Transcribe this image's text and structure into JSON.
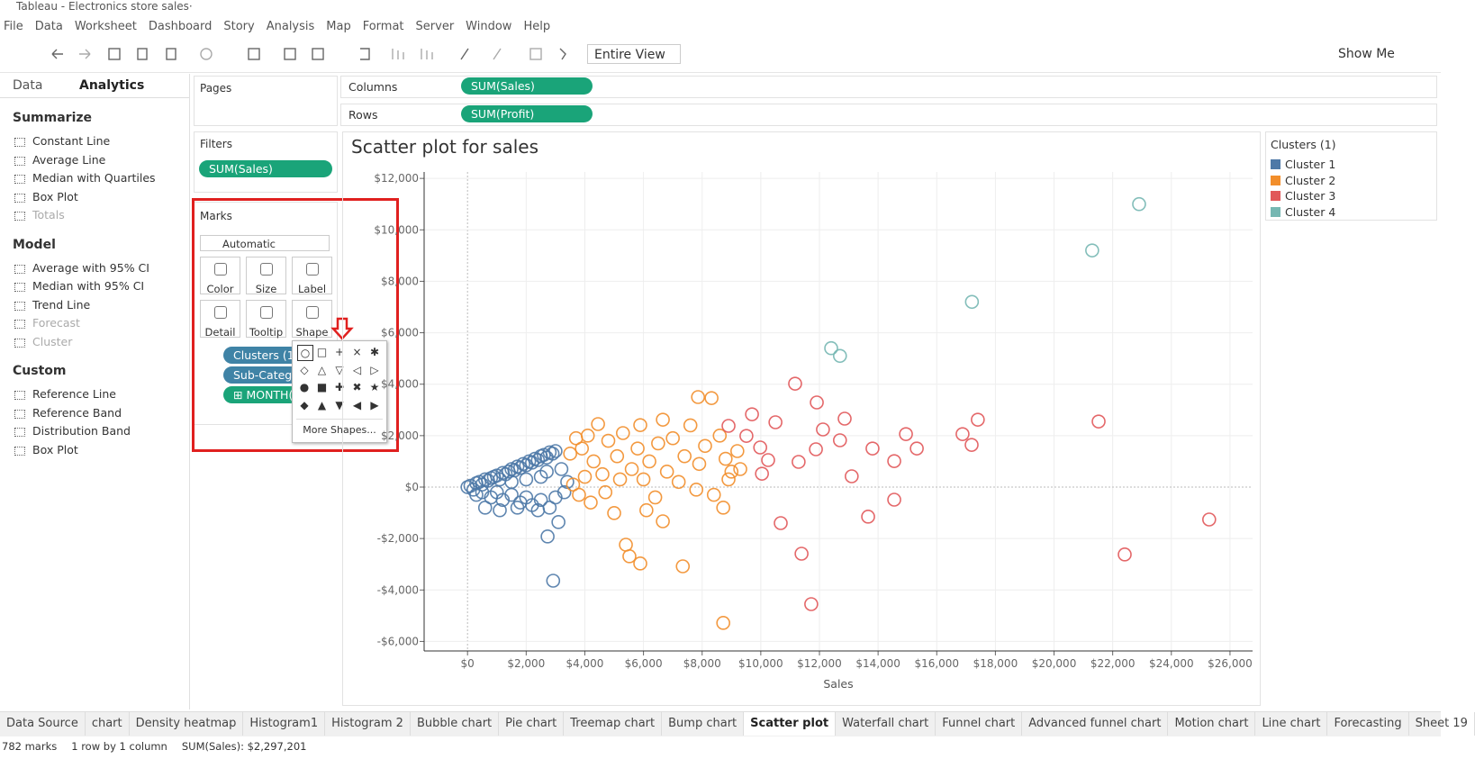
{
  "window": {
    "title": "Tableau - Electronics store sales·"
  },
  "menu": [
    "File",
    "Data",
    "Worksheet",
    "Dashboard",
    "Story",
    "Analysis",
    "Map",
    "Format",
    "Server",
    "Window",
    "Help"
  ],
  "toolbar": {
    "view": "Entire View",
    "show_me": "Show Me"
  },
  "side_panel": {
    "tabs": [
      "Data",
      "Analytics"
    ],
    "sections": [
      {
        "title": "Summarize",
        "items": [
          "Constant Line",
          "Average Line",
          "Median with Quartiles",
          "Box Plot",
          "Totals"
        ]
      },
      {
        "title": "Model",
        "items": [
          "Average with 95% CI",
          "Median with 95% CI",
          "Trend Line",
          "Forecast",
          "Cluster"
        ]
      },
      {
        "title": "Custom",
        "items": [
          "Reference Line",
          "Reference Band",
          "Distribution Band",
          "Box Plot"
        ]
      }
    ]
  },
  "pages": {
    "title": "Pages"
  },
  "filters": {
    "title": "Filters",
    "pills": [
      "SUM(Sales)"
    ]
  },
  "marks": {
    "title": "Marks",
    "type": "Automatic",
    "buttons": [
      "Color",
      "Size",
      "Label",
      "Detail",
      "Tooltip",
      "Shape"
    ],
    "pills": [
      "Clusters (1)",
      "Sub-Catego",
      "⊞ MONTH("
    ]
  },
  "shape_popup": {
    "shapes": [
      "○",
      "□",
      "+",
      "×",
      "✱",
      "◇",
      "△",
      "▽",
      "◁",
      "▷",
      "●",
      "■",
      "✚",
      "✖",
      "★",
      "◆",
      "▲",
      "▼",
      "◀",
      "▶"
    ],
    "more": "More Shapes..."
  },
  "shelves": {
    "columns": {
      "label": "Columns",
      "pill": "SUM(Sales)"
    },
    "rows": {
      "label": "Rows",
      "pill": "SUM(Profit)"
    }
  },
  "chart_data": {
    "type": "scatter",
    "title": "Scatter plot for sales",
    "x_label": "Sales",
    "legend_title": "Clusters (1)",
    "grid": true,
    "xlim": [
      -1480,
      26770
    ],
    "ylim": [
      -6370,
      12250
    ],
    "xticks": [
      {
        "value": 0,
        "label": "$0"
      },
      {
        "value": 2000,
        "label": "$2,000"
      },
      {
        "value": 4000,
        "label": "$4,000"
      },
      {
        "value": 6000,
        "label": "$6,000"
      },
      {
        "value": 8000,
        "label": "$8,000"
      },
      {
        "value": 10000,
        "label": "$10,000"
      },
      {
        "value": 12000,
        "label": "$12,000"
      },
      {
        "value": 14000,
        "label": "$14,000"
      },
      {
        "value": 16000,
        "label": "$16,000"
      },
      {
        "value": 18000,
        "label": "$18,000"
      },
      {
        "value": 20000,
        "label": "$20,000"
      },
      {
        "value": 22000,
        "label": "$22,000"
      },
      {
        "value": 24000,
        "label": "$24,000"
      },
      {
        "value": 26000,
        "label": "$26,000"
      }
    ],
    "yticks": [
      {
        "value": -6000,
        "label": "-$6,000"
      },
      {
        "value": -4000,
        "label": "-$4,000"
      },
      {
        "value": -2000,
        "label": "-$2,000"
      },
      {
        "value": 0,
        "label": "$0"
      },
      {
        "value": 2000,
        "label": "$2,000"
      },
      {
        "value": 4000,
        "label": "$4,000"
      },
      {
        "value": 6000,
        "label": "$6,000"
      },
      {
        "value": 8000,
        "label": "$8,000"
      },
      {
        "value": 10000,
        "label": "$10,000"
      },
      {
        "value": 12000,
        "label": "$12,000"
      }
    ],
    "series": [
      {
        "name": "Cluster 1",
        "color": "#4e79a7",
        "x": [
          0,
          100,
          200,
          300,
          400,
          500,
          600,
          700,
          800,
          900,
          1000,
          1100,
          1200,
          1300,
          1400,
          1500,
          1600,
          1700,
          1800,
          1900,
          2000,
          2100,
          2200,
          2300,
          2400,
          2500,
          2600,
          2700,
          2800,
          2900,
          3000,
          300,
          500,
          800,
          1000,
          1200,
          1500,
          1800,
          2000,
          2200,
          2500,
          2800,
          3000,
          600,
          1100,
          1700,
          2400,
          2730,
          2920,
          3100,
          1500,
          2000,
          2500,
          3200,
          3400,
          3300,
          2700
        ],
        "values": [
          0,
          50,
          -100,
          150,
          200,
          100,
          300,
          250,
          350,
          400,
          450,
          300,
          550,
          500,
          600,
          700,
          650,
          800,
          750,
          900,
          850,
          1000,
          950,
          1100,
          1050,
          1200,
          1250,
          1150,
          1350,
          1300,
          1400,
          -300,
          -200,
          -400,
          -200,
          -500,
          -300,
          -600,
          -400,
          -700,
          -500,
          -800,
          -400,
          -800,
          -900,
          -800,
          -900,
          -1920,
          -3640,
          -1360,
          200,
          300,
          400,
          700,
          200,
          -200,
          600
        ]
      },
      {
        "name": "Cluster 2",
        "color": "#f28e2b",
        "x": [
          3500,
          3700,
          3900,
          4100,
          4300,
          4450,
          4600,
          4800,
          5000,
          5100,
          5300,
          5400,
          5520,
          5600,
          5800,
          5890,
          5890,
          6000,
          6200,
          6400,
          6500,
          6660,
          6660,
          6800,
          7000,
          7200,
          7340,
          7400,
          7600,
          7860,
          7900,
          8100,
          8320,
          8400,
          8600,
          8720,
          8720,
          8800,
          9000,
          9200,
          3800,
          4200,
          4000,
          4700,
          5200,
          6100,
          7800,
          8900,
          9300,
          3600
        ],
        "values": [
          1300,
          1900,
          1500,
          2000,
          1000,
          2450,
          500,
          1800,
          -1010,
          1200,
          2100,
          -2240,
          -2690,
          700,
          1500,
          2410,
          -2970,
          300,
          1000,
          -400,
          1700,
          2620,
          -1330,
          600,
          1900,
          200,
          -3080,
          1200,
          2400,
          3500,
          900,
          1600,
          3460,
          -300,
          2000,
          -800,
          -5280,
          1100,
          600,
          1400,
          -300,
          -600,
          400,
          -200,
          300,
          -900,
          -100,
          300,
          700,
          100
        ]
      },
      {
        "name": "Cluster 3",
        "color": "#e15759",
        "x": [
          11170,
          11910,
          12860,
          12120,
          10500,
          9700,
          8900,
          11880,
          12700,
          13810,
          14950,
          15320,
          14550,
          17400,
          16880,
          17190,
          21520,
          13100,
          11290,
          10040,
          13660,
          10680,
          11390,
          14550,
          11720,
          22410,
          25290,
          9980,
          10250,
          9510
        ],
        "values": [
          4020,
          3290,
          2660,
          2240,
          2520,
          2830,
          2380,
          1470,
          1820,
          1500,
          2060,
          1500,
          1010,
          2620,
          2060,
          1640,
          2550,
          420,
          980,
          520,
          -1150,
          -1400,
          -2590,
          -490,
          -4550,
          -2620,
          -1260,
          1540,
          1050,
          1990
        ]
      },
      {
        "name": "Cluster 4",
        "color": "#76b7b2",
        "x": [
          17200,
          21300,
          22900,
          12400,
          12700
        ],
        "values": [
          7200,
          9200,
          11000,
          5400,
          5100
        ]
      }
    ]
  },
  "sheet_tabs": [
    "Data Source",
    "chart",
    "Density heatmap",
    "Histogram1",
    "Histogram 2",
    "Bubble chart",
    "Pie chart",
    "Treemap chart",
    "Bump chart",
    "Scatter plot",
    "Waterfall chart",
    "Funnel chart",
    "Advanced funnel chart",
    "Motion chart",
    "Line chart",
    "Forecasting",
    "Sheet 19"
  ],
  "status_bar": [
    "782 marks",
    "1 row by 1 column",
    "SUM(Sales): $2,297,201"
  ]
}
